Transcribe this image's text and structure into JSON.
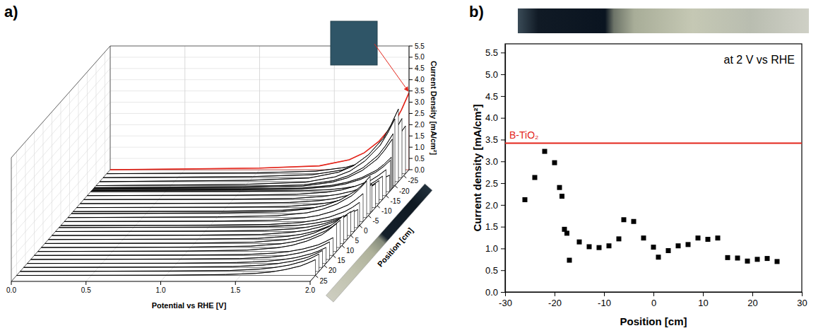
{
  "chart_data": [
    {
      "type": "waterfall3d",
      "panel": "a)",
      "x_label": "Potential vs RHE [V]",
      "y_label": "Current Density [mA/cm²]",
      "z_label": "Position [cm]",
      "x": [
        0,
        1.0,
        1.4,
        1.6,
        1.7,
        1.8,
        1.9,
        1.95,
        2.0
      ],
      "xlim": [
        0,
        2
      ],
      "xticks": [
        {
          "value": 0,
          "label": "0.0"
        },
        0.5,
        {
          "value": 1,
          "label": "1.0"
        },
        1.5,
        {
          "value": 2,
          "label": "2.0"
        }
      ],
      "ylim": [
        0,
        5.5
      ],
      "yticks": [
        {
          "value": 0,
          "label": "0.0"
        },
        0.5,
        {
          "value": 1,
          "label": "1.0"
        },
        1.5,
        {
          "value": 2,
          "label": "2.0"
        },
        2.5,
        {
          "value": 3,
          "label": "3.0"
        },
        3.5,
        {
          "value": 4,
          "label": "4.0"
        },
        4.5,
        {
          "value": 5,
          "label": "5.0"
        },
        5.5
      ],
      "zlim": [
        -28,
        28
      ],
      "zticks": [
        -25,
        -20,
        -15,
        -10,
        -5,
        0,
        5,
        10,
        15,
        20,
        25
      ],
      "grid": true,
      "series": [
        {
          "position": -26,
          "color": "#000000",
          "values": [
            0,
            0.04,
            0.11,
            0.28,
            0.47,
            0.78,
            1.27,
            1.65,
            2.12
          ]
        },
        {
          "position": -24,
          "color": "#000000",
          "values": [
            0,
            0.05,
            0.13,
            0.34,
            0.58,
            0.97,
            1.58,
            2.05,
            2.63
          ]
        },
        {
          "position": -22,
          "color": "#000000",
          "values": [
            0,
            0.06,
            0.16,
            0.42,
            0.71,
            1.2,
            1.94,
            2.52,
            3.23
          ]
        },
        {
          "position": -20,
          "color": "#000000",
          "values": [
            0,
            0.06,
            0.15,
            0.39,
            0.65,
            1.1,
            1.78,
            2.32,
            2.97
          ]
        },
        {
          "position": -19,
          "color": "#000000",
          "values": [
            0,
            0.05,
            0.12,
            0.31,
            0.53,
            0.89,
            1.44,
            1.87,
            2.4
          ]
        },
        {
          "position": -18.5,
          "color": "#000000",
          "values": [
            0,
            0.04,
            0.11,
            0.29,
            0.48,
            0.81,
            1.32,
            1.72,
            2.2
          ]
        },
        {
          "position": -18,
          "color": "#000000",
          "values": [
            0,
            0.03,
            0.07,
            0.19,
            0.32,
            0.53,
            0.86,
            1.12,
            1.44
          ]
        },
        {
          "position": -17.5,
          "color": "#000000",
          "values": [
            0,
            0.03,
            0.07,
            0.18,
            0.3,
            0.5,
            0.81,
            1.05,
            1.35
          ]
        },
        {
          "position": -17,
          "color": "#000000",
          "values": [
            0,
            0.01,
            0.04,
            0.09,
            0.16,
            0.27,
            0.44,
            0.57,
            0.73
          ]
        },
        {
          "position": -15,
          "color": "#000000",
          "values": [
            0,
            0.02,
            0.06,
            0.15,
            0.25,
            0.43,
            0.69,
            0.9,
            1.15
          ]
        },
        {
          "position": -13,
          "color": "#000000",
          "values": [
            0,
            0.02,
            0.05,
            0.14,
            0.23,
            0.38,
            0.62,
            0.81,
            1.04
          ]
        },
        {
          "position": -11,
          "color": "#000000",
          "values": [
            0,
            0.02,
            0.05,
            0.13,
            0.22,
            0.38,
            0.61,
            0.8,
            1.02
          ]
        },
        {
          "position": -9,
          "color": "#000000",
          "values": [
            0,
            0.02,
            0.05,
            0.14,
            0.23,
            0.39,
            0.64,
            0.83,
            1.06
          ]
        },
        {
          "position": -7,
          "color": "#000000",
          "values": [
            0,
            0.02,
            0.06,
            0.16,
            0.27,
            0.45,
            0.73,
            0.95,
            1.22
          ]
        },
        {
          "position": -6,
          "color": "#000000",
          "values": [
            0,
            0.03,
            0.08,
            0.22,
            0.37,
            0.61,
            1.0,
            1.29,
            1.66
          ]
        },
        {
          "position": -4,
          "color": "#000000",
          "values": [
            0,
            0.03,
            0.08,
            0.21,
            0.36,
            0.6,
            0.97,
            1.26,
            1.62
          ]
        },
        {
          "position": -2,
          "color": "#000000",
          "values": [
            0,
            0.02,
            0.06,
            0.16,
            0.27,
            0.46,
            0.74,
            0.97,
            1.24
          ]
        },
        {
          "position": 0,
          "color": "#000000",
          "values": [
            0,
            0.02,
            0.05,
            0.13,
            0.23,
            0.38,
            0.62,
            0.8,
            1.03
          ]
        },
        {
          "position": 1,
          "color": "#000000",
          "values": [
            0,
            0.02,
            0.04,
            0.1,
            0.18,
            0.3,
            0.48,
            0.62,
            0.8
          ]
        },
        {
          "position": 3,
          "color": "#000000",
          "values": [
            0,
            0.02,
            0.05,
            0.12,
            0.21,
            0.35,
            0.57,
            0.74,
            0.95
          ]
        },
        {
          "position": 5,
          "color": "#000000",
          "values": [
            0,
            0.02,
            0.05,
            0.14,
            0.23,
            0.39,
            0.64,
            0.83,
            1.06
          ]
        },
        {
          "position": 7,
          "color": "#000000",
          "values": [
            0,
            0.02,
            0.05,
            0.14,
            0.24,
            0.4,
            0.65,
            0.85,
            1.09
          ]
        },
        {
          "position": 9,
          "color": "#000000",
          "values": [
            0,
            0.02,
            0.06,
            0.16,
            0.27,
            0.46,
            0.74,
            0.97,
            1.24
          ]
        },
        {
          "position": 11,
          "color": "#000000",
          "values": [
            0,
            0.02,
            0.06,
            0.16,
            0.27,
            0.45,
            0.73,
            0.94,
            1.21
          ]
        },
        {
          "position": 13,
          "color": "#000000",
          "values": [
            0,
            0.02,
            0.06,
            0.16,
            0.27,
            0.46,
            0.74,
            0.97,
            1.24
          ]
        },
        {
          "position": 15,
          "color": "#000000",
          "values": [
            0,
            0.02,
            0.04,
            0.1,
            0.17,
            0.29,
            0.47,
            0.62,
            0.79
          ]
        },
        {
          "position": 17,
          "color": "#000000",
          "values": [
            0,
            0.02,
            0.04,
            0.1,
            0.17,
            0.29,
            0.47,
            0.61,
            0.78
          ]
        },
        {
          "position": 19,
          "color": "#000000",
          "values": [
            0,
            0.01,
            0.04,
            0.09,
            0.16,
            0.26,
            0.43,
            0.55,
            0.71
          ]
        },
        {
          "position": 21,
          "color": "#000000",
          "values": [
            0,
            0.02,
            0.04,
            0.1,
            0.17,
            0.28,
            0.45,
            0.59,
            0.75
          ]
        },
        {
          "position": 23,
          "color": "#000000",
          "values": [
            0,
            0.02,
            0.04,
            0.1,
            0.17,
            0.28,
            0.46,
            0.6,
            0.77
          ]
        },
        {
          "position": 25,
          "color": "#000000",
          "values": [
            0,
            0.01,
            0.04,
            0.09,
            0.15,
            0.26,
            0.42,
            0.55,
            0.7
          ]
        },
        {
          "color": "#e3261c",
          "values": [
            0,
            0.07,
            0.17,
            0.44,
            0.75,
            1.27,
            2.05,
            2.67,
            3.42
          ]
        }
      ]
    },
    {
      "type": "scatter",
      "panel": "b)",
      "annotation": "at 2 V vs RHE",
      "x_label": "Position [cm]",
      "y_label": "Current density [mA/cm²]",
      "x": [
        -26,
        -24,
        -22,
        -20,
        -19,
        -18.5,
        -18,
        -17.5,
        -17,
        -15,
        -13,
        -11,
        -9,
        -7,
        -6,
        -4,
        -2,
        0,
        1,
        3,
        5,
        7,
        9,
        11,
        13,
        15,
        17,
        19,
        21,
        23,
        25
      ],
      "values": [
        2.12,
        2.63,
        3.23,
        2.97,
        2.4,
        2.2,
        1.44,
        1.35,
        0.73,
        1.15,
        1.04,
        1.02,
        1.06,
        1.22,
        1.66,
        1.62,
        1.24,
        1.03,
        0.8,
        0.95,
        1.06,
        1.09,
        1.24,
        1.21,
        1.24,
        0.79,
        0.78,
        0.71,
        0.75,
        0.77,
        0.7
      ],
      "color": "#000000",
      "marker": "square",
      "grid": false,
      "xlim": [
        -30,
        30
      ],
      "xticks": [
        -30,
        -20,
        -10,
        0,
        10,
        20,
        30
      ],
      "ylim": [
        0,
        5.7
      ],
      "yticks": [
        {
          "value": 0,
          "label": "0.0"
        },
        0.5,
        {
          "value": 1,
          "label": "1.0"
        },
        1.5,
        {
          "value": 2,
          "label": "2.0"
        },
        2.5,
        {
          "value": 3,
          "label": "3.0"
        },
        3.5,
        {
          "value": 4,
          "label": "4.0"
        },
        4.5,
        {
          "value": 5,
          "label": "5.0"
        },
        5.5
      ],
      "reference": {
        "label": "B-TiO₂",
        "value": 3.42,
        "color": "#e3261c"
      }
    }
  ]
}
